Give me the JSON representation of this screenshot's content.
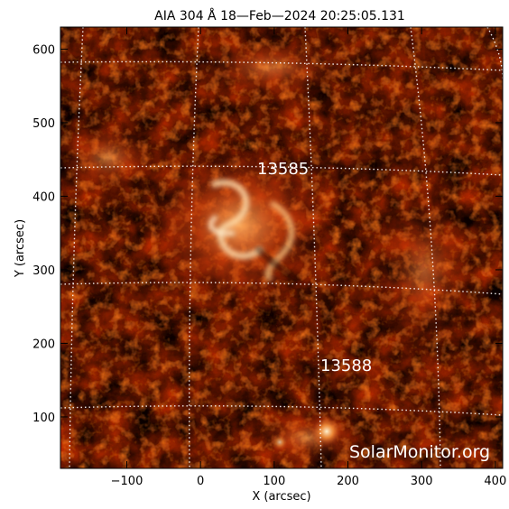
{
  "title": "AIA 304 Å 18—Feb—2024 20:25:05.131",
  "x_axis": {
    "label": "X (arcsec)",
    "ticks": [
      "−100",
      "0",
      "100",
      "200",
      "300",
      "400"
    ],
    "tick_values": [
      -100,
      0,
      100,
      200,
      300,
      400
    ],
    "range": [
      -190,
      410
    ]
  },
  "y_axis": {
    "label": "Y (arcsec)",
    "ticks": [
      "100",
      "200",
      "300",
      "400",
      "500",
      "600"
    ],
    "tick_values": [
      100,
      200,
      300,
      400,
      500,
      600
    ],
    "range": [
      30,
      630
    ]
  },
  "active_regions": [
    {
      "label": "13585",
      "x": 85,
      "y": 435
    },
    {
      "label": "13588",
      "x": 155,
      "y": 165
    }
  ],
  "watermark": "SolarMonitor.org",
  "colors": {
    "background": "#ffffff",
    "image_dark": "#0a0000",
    "image_mid": "#a01800",
    "image_bright": "#ffe8c0",
    "grid": "#ffffff",
    "label": "#ffffff"
  }
}
